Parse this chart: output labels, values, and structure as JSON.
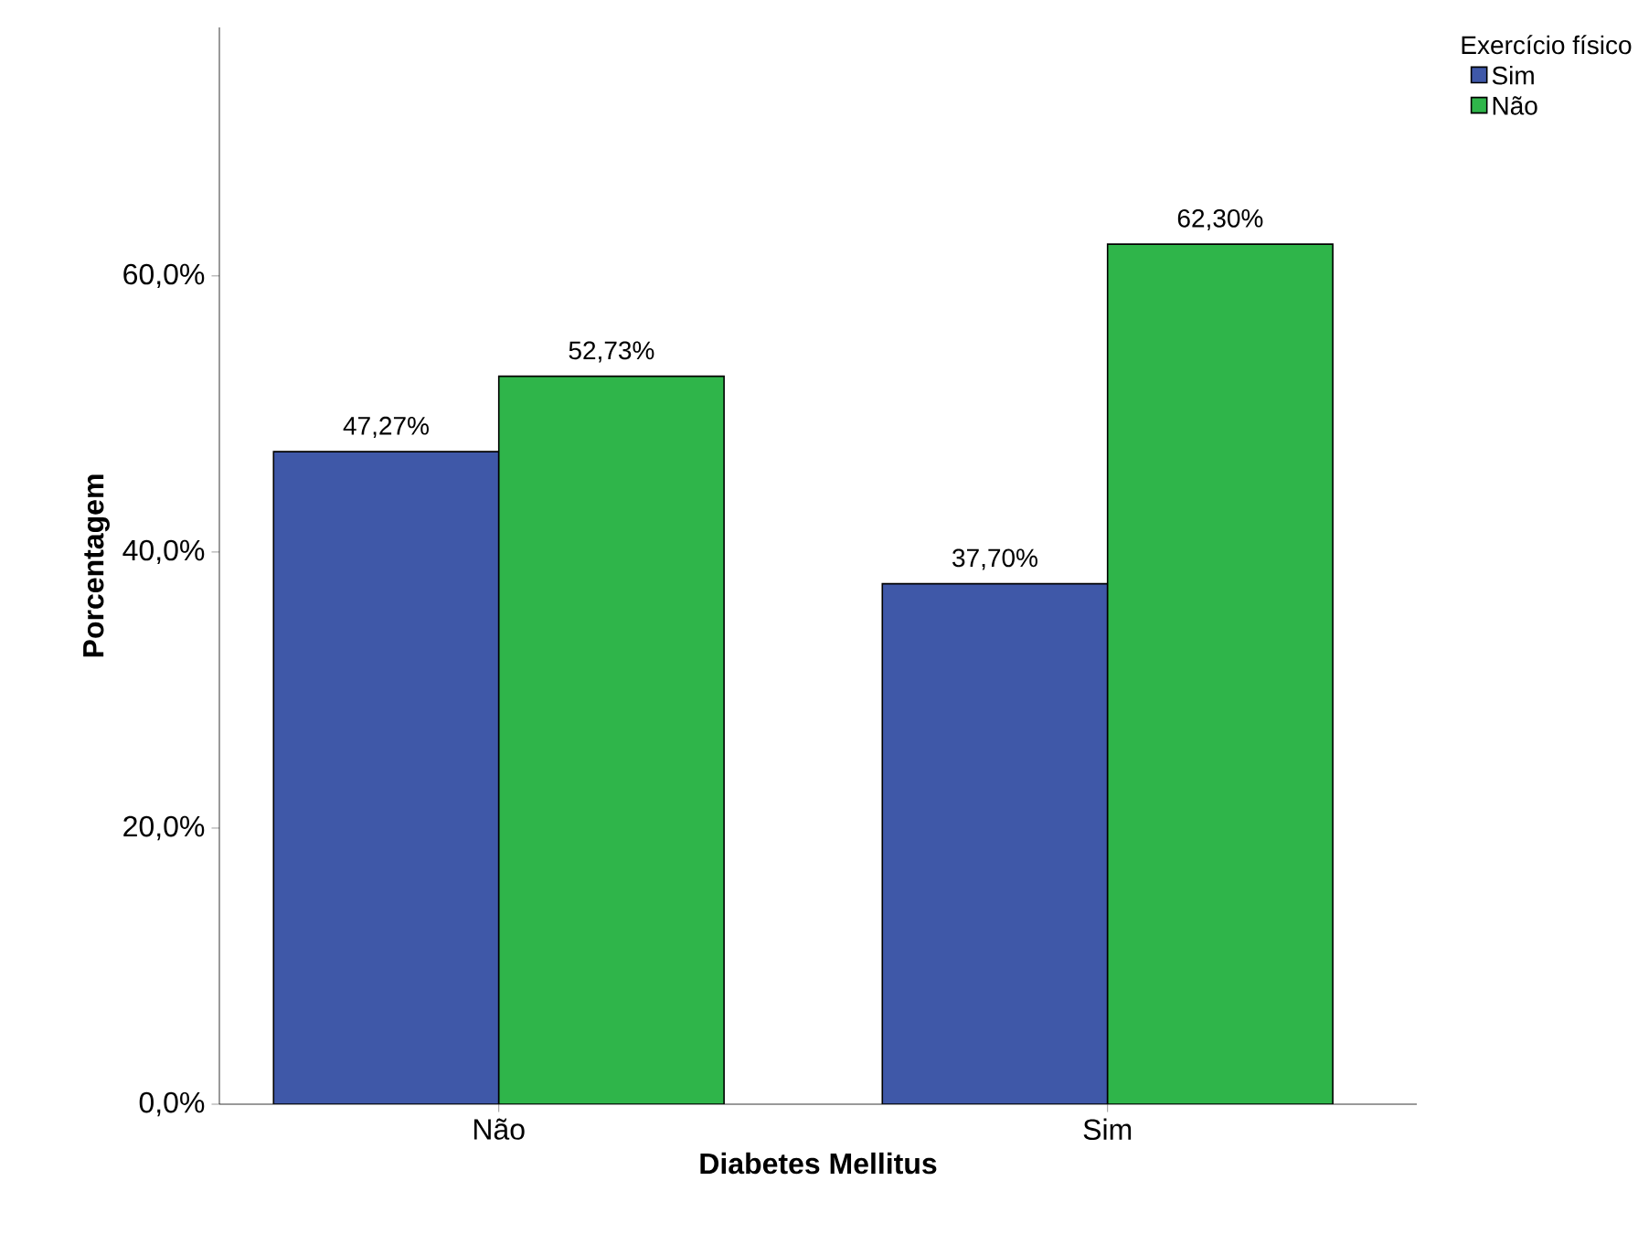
{
  "chart_data": {
    "type": "bar",
    "xlabel": "Diabetes Mellitus",
    "ylabel": "Porcentagem",
    "legend_title": "Exercício físico",
    "legend": "top right",
    "categories": [
      "Não",
      "Sim"
    ],
    "ylim": [
      0,
      78
    ],
    "yticks": [
      {
        "value": 0,
        "label": "0,0%"
      },
      {
        "value": 20,
        "label": "20,0%"
      },
      {
        "value": 40,
        "label": "40,0%"
      },
      {
        "value": 60,
        "label": "60,0%"
      }
    ],
    "series": [
      {
        "name": "Sim",
        "color": "#3f58a8",
        "values": [
          47.27,
          37.7
        ],
        "value_labels": [
          "47,27%",
          "37,70%"
        ]
      },
      {
        "name": "Não",
        "color": "#2fb54a",
        "values": [
          52.73,
          62.3
        ],
        "value_labels": [
          "52,73%",
          "62,30%"
        ]
      }
    ]
  }
}
